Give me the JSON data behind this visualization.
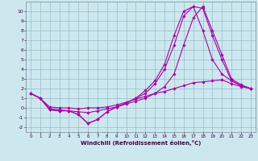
{
  "xlabel": "Windchill (Refroidissement éolien,°C)",
  "bg_color": "#cce8ee",
  "line_color": "#aa00aa",
  "grid_color": "#99bbcc",
  "xlim": [
    -0.5,
    23.5
  ],
  "ylim": [
    -2.5,
    11.0
  ],
  "xticks": [
    0,
    1,
    2,
    3,
    4,
    5,
    6,
    7,
    8,
    9,
    10,
    11,
    12,
    13,
    14,
    15,
    16,
    17,
    18,
    19,
    20,
    21,
    22,
    23
  ],
  "yticks": [
    -2,
    -1,
    0,
    1,
    2,
    3,
    4,
    5,
    6,
    7,
    8,
    9,
    10
  ],
  "line1_x": [
    0,
    1,
    2,
    3,
    4,
    5,
    6,
    7,
    8,
    9,
    10,
    11,
    12,
    13,
    14,
    15,
    16,
    17,
    18,
    19,
    20,
    21,
    22,
    23
  ],
  "line1_y": [
    1.5,
    1.0,
    0.1,
    0.0,
    -0.0,
    -0.1,
    0.0,
    0.0,
    0.1,
    0.3,
    0.6,
    0.9,
    1.2,
    1.5,
    1.7,
    2.0,
    2.3,
    2.6,
    2.7,
    2.8,
    2.9,
    2.5,
    2.2,
    2.0
  ],
  "line2_x": [
    0,
    1,
    2,
    3,
    4,
    5,
    6,
    7,
    8,
    9,
    10,
    11,
    12,
    13,
    14,
    15,
    16,
    17,
    18,
    19,
    20,
    21,
    22,
    23
  ],
  "line2_y": [
    1.5,
    1.0,
    -0.1,
    -0.2,
    -0.3,
    -0.4,
    -0.5,
    -0.3,
    -0.1,
    0.1,
    0.4,
    0.7,
    1.0,
    1.5,
    2.2,
    3.5,
    6.5,
    9.3,
    10.5,
    8.0,
    5.5,
    3.0,
    2.4,
    2.0
  ],
  "line3_x": [
    0,
    1,
    2,
    3,
    4,
    5,
    6,
    7,
    8,
    9,
    10,
    11,
    12,
    13,
    14,
    15,
    16,
    17,
    18,
    19,
    20,
    21,
    22,
    23
  ],
  "line3_y": [
    1.5,
    1.0,
    -0.2,
    -0.3,
    -0.3,
    -0.7,
    -1.6,
    -1.2,
    -0.4,
    0.1,
    0.5,
    1.0,
    1.5,
    2.5,
    4.0,
    6.5,
    9.5,
    10.5,
    10.3,
    7.5,
    5.0,
    2.8,
    2.3,
    2.0
  ],
  "line4_x": [
    0,
    1,
    2,
    3,
    4,
    5,
    6,
    7,
    8,
    9,
    10,
    11,
    12,
    13,
    14,
    15,
    16,
    17,
    18,
    19,
    20,
    21,
    22,
    23
  ],
  "line4_y": [
    1.5,
    1.0,
    -0.2,
    -0.3,
    -0.3,
    -0.7,
    -1.6,
    -1.2,
    -0.4,
    0.1,
    0.5,
    1.0,
    1.8,
    2.8,
    4.5,
    7.5,
    10.0,
    10.5,
    8.0,
    5.0,
    3.5,
    2.8,
    2.3,
    2.0
  ]
}
